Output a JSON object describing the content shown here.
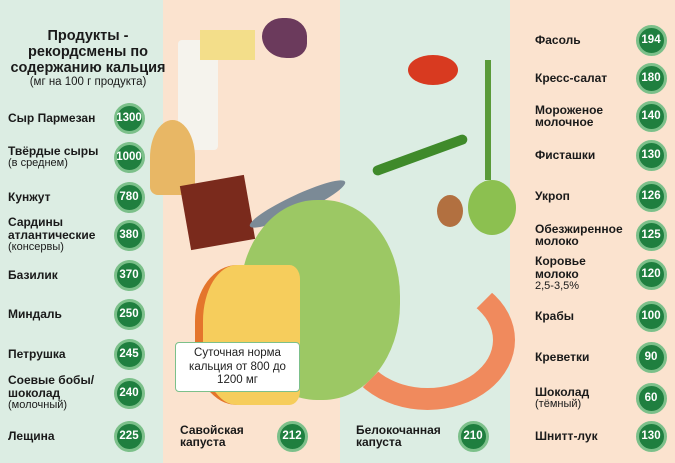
{
  "title": "Продукты - рекордсмены по содержанию кальция",
  "subtitle": "(мг на 100 г продукта)",
  "note": "Суточная норма кальция от 800 до 1200 мг",
  "colors": {
    "mint": "#dcede3",
    "peach": "#fbe3cf",
    "badge": "#1f7f3f",
    "badge_ring": "#7cc08a"
  },
  "left_items": [
    {
      "name": "Сыр Пармезан",
      "sub": "",
      "value": "1300"
    },
    {
      "name": "Твёрдые сыры",
      "sub": "(в среднем)",
      "value": "1000"
    },
    {
      "name": "Кунжут",
      "sub": "",
      "value": "780"
    },
    {
      "name": "Сардины атлантические",
      "sub": "(консервы)",
      "value": "380"
    },
    {
      "name": "Базилик",
      "sub": "",
      "value": "370"
    },
    {
      "name": "Миндаль",
      "sub": "",
      "value": "250"
    },
    {
      "name": "Петрушка",
      "sub": "",
      "value": "245"
    },
    {
      "name": "Соевые бобы/ шоколад",
      "sub": "(молочный)",
      "value": "240"
    },
    {
      "name": "Лещина",
      "sub": "",
      "value": "225"
    }
  ],
  "middle_items": [
    {
      "name": "Савойская капуста",
      "sub": "",
      "value": "212"
    },
    {
      "name": "Белокочанная капуста",
      "sub": "",
      "value": "210"
    }
  ],
  "right_items": [
    {
      "name": "Фасоль",
      "sub": "",
      "value": "194"
    },
    {
      "name": "Кресс-салат",
      "sub": "",
      "value": "180"
    },
    {
      "name": "Мороженое молочное",
      "sub": "",
      "value": "140"
    },
    {
      "name": "Фисташки",
      "sub": "",
      "value": "130"
    },
    {
      "name": "Укроп",
      "sub": "",
      "value": "126"
    },
    {
      "name": "Обезжиренное молоко",
      "sub": "",
      "value": "125"
    },
    {
      "name": "Коровье молоко",
      "sub": "2,5-3,5%",
      "value": "120"
    },
    {
      "name": "Крабы",
      "sub": "",
      "value": "100"
    },
    {
      "name": "Креветки",
      "sub": "",
      "value": "90"
    },
    {
      "name": "Шоколад",
      "sub": "(тёмный)",
      "value": "60"
    },
    {
      "name": "Шнитт-лук",
      "sub": "",
      "value": "130"
    }
  ]
}
